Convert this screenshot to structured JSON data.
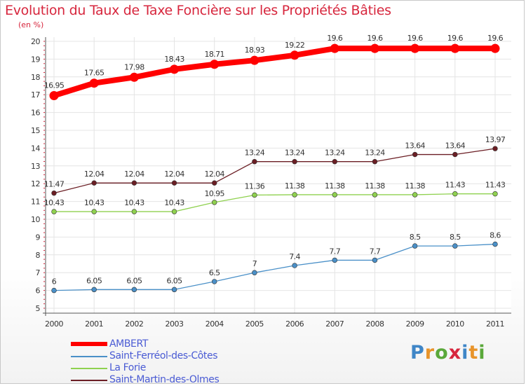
{
  "chart_data": {
    "type": "line",
    "title": "Evolution du Taux de Taxe Foncière sur les Propriétés Bâties",
    "ylabel": "(en %)",
    "xlabel": "",
    "ylim": [
      5,
      20
    ],
    "yticks": [
      "5",
      "6",
      "7",
      "8",
      "9",
      "10",
      "11",
      "12",
      "13",
      "14",
      "15",
      "16",
      "17",
      "18",
      "19",
      "20"
    ],
    "categories": [
      "2000",
      "2001",
      "2002",
      "2003",
      "2004",
      "2005",
      "2006",
      "2007",
      "2008",
      "2009",
      "2010",
      "2011"
    ],
    "series": [
      {
        "name": "AMBERT",
        "color": "#ff0000",
        "values": [
          16.95,
          17.65,
          17.98,
          18.43,
          18.71,
          18.93,
          19.22,
          19.6,
          19.6,
          19.6,
          19.6,
          19.6
        ],
        "labels": [
          "16.95",
          "17.65",
          "17.98",
          "18.43",
          "18.71",
          "18.93",
          "19.22",
          "19.6",
          "19.6",
          "19.6",
          "19.6",
          "19.6"
        ]
      },
      {
        "name": "Saint-Ferréol-des-Côtes",
        "color": "#4a90c8",
        "values": [
          6,
          6.05,
          6.05,
          6.05,
          6.5,
          7,
          7.4,
          7.7,
          7.7,
          8.5,
          8.5,
          8.6
        ],
        "labels": [
          "6",
          "6.05",
          "6.05",
          "6.05",
          "6.5",
          "7",
          "7.4",
          "7.7",
          "7.7",
          "8.5",
          "8.5",
          "8.6"
        ]
      },
      {
        "name": "La Forie",
        "color": "#8fd14f",
        "values": [
          10.43,
          10.43,
          10.43,
          10.43,
          10.95,
          11.36,
          11.38,
          11.38,
          11.38,
          11.38,
          11.43,
          11.43
        ],
        "labels": [
          "10.43",
          "10.43",
          "10.43",
          "10.43",
          "10.95",
          "11.36",
          "11.38",
          "11.38",
          "11.38",
          "11.38",
          "11.43",
          "11.43"
        ]
      },
      {
        "name": "Saint-Martin-des-Olmes",
        "color": "#6b1e24",
        "values": [
          11.47,
          12.04,
          12.04,
          12.04,
          12.04,
          13.24,
          13.24,
          13.24,
          13.24,
          13.64,
          13.64,
          13.97
        ],
        "labels": [
          "11.47",
          "12.04",
          "12.04",
          "12.04",
          "12.04",
          "13.24",
          "13.24",
          "13.24",
          "13.24",
          "13.64",
          "13.64",
          "13.97"
        ]
      }
    ],
    "legend_position": "bottom-left",
    "grid": true
  },
  "logo": [
    "P",
    "r",
    "o",
    "x",
    "i",
    "t",
    "i"
  ]
}
